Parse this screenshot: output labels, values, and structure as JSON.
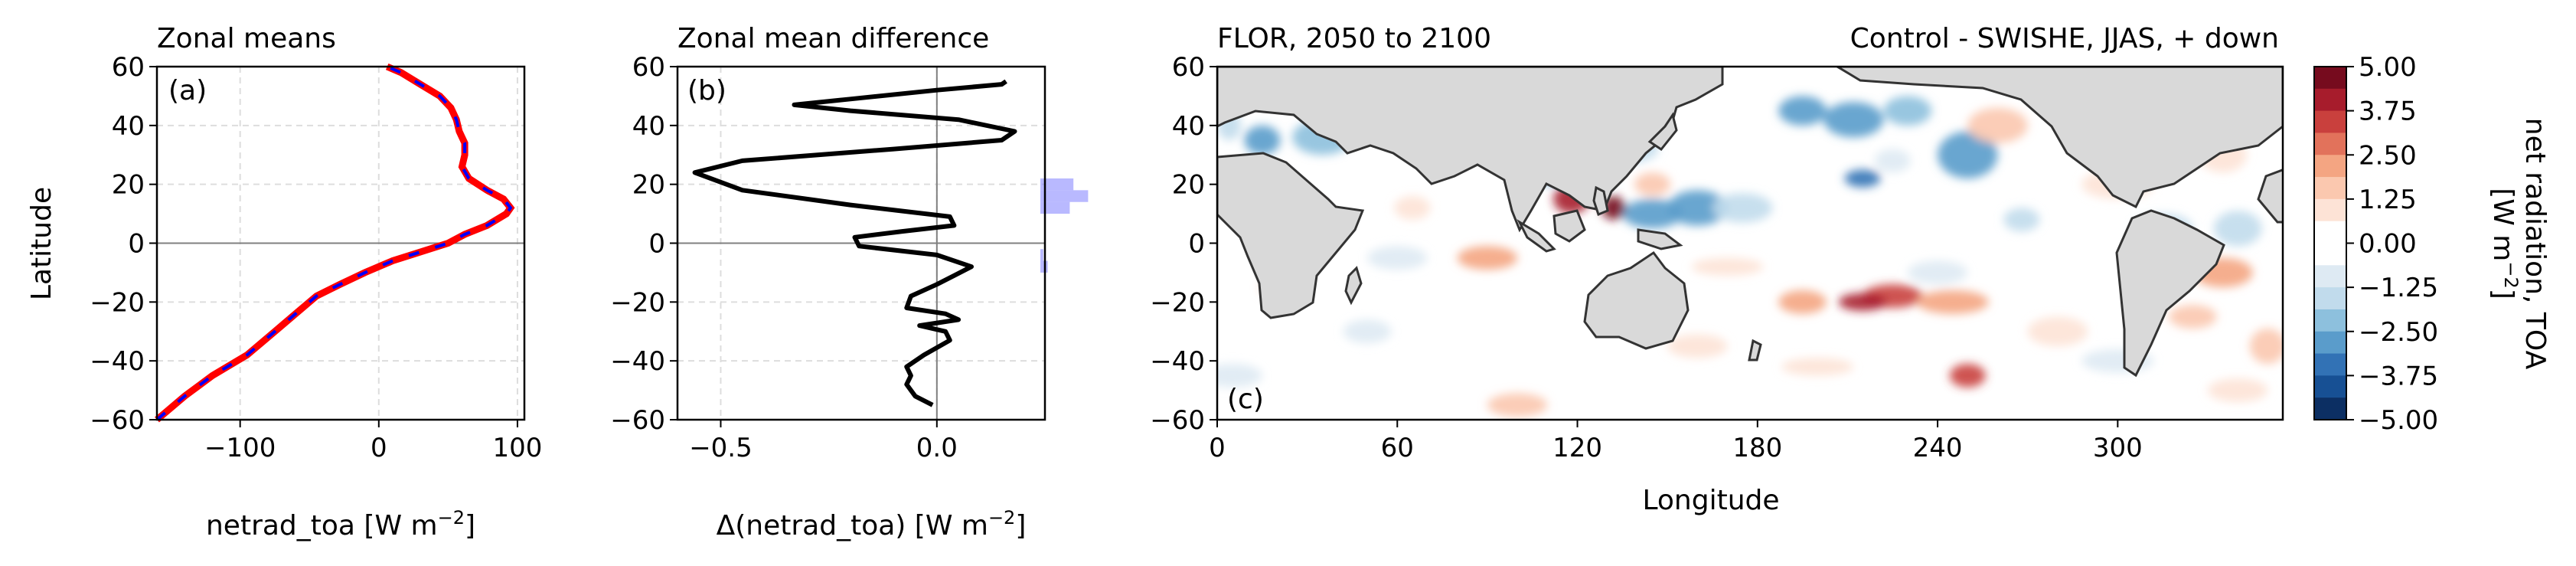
{
  "chart_data": [
    {
      "panel": "a",
      "type": "line",
      "title": "Zonal means",
      "panel_label": "(a)",
      "xlabel": "netrad_toa [W m",
      "xlabel_sup": "−2",
      "xlabel_end": "]",
      "ylabel": "Latitude",
      "xlim": [
        -160,
        105
      ],
      "ylim": [
        -60,
        60
      ],
      "xticks": [
        -100,
        0,
        100
      ],
      "xtick_labels": [
        "−100",
        "0",
        "100"
      ],
      "yticks": [
        -60,
        -40,
        -20,
        0,
        20,
        40,
        60
      ],
      "ytick_labels": [
        "−60",
        "−40",
        "−20",
        "0",
        "20",
        "40",
        "60"
      ],
      "grid": true,
      "series": [
        {
          "color": "#ff0000",
          "dash": false,
          "points": [
            [
              -160,
              -60
            ],
            [
              -140,
              -52
            ],
            [
              -120,
              -45
            ],
            [
              -95,
              -38
            ],
            [
              -75,
              -30
            ],
            [
              -60,
              -24
            ],
            [
              -45,
              -18
            ],
            [
              -28,
              -14
            ],
            [
              -10,
              -10
            ],
            [
              10,
              -6
            ],
            [
              30,
              -3
            ],
            [
              50,
              0
            ],
            [
              62,
              3
            ],
            [
              78,
              6
            ],
            [
              92,
              10
            ],
            [
              95,
              12
            ],
            [
              90,
              15
            ],
            [
              78,
              18
            ],
            [
              65,
              22
            ],
            [
              60,
              26
            ],
            [
              62,
              30
            ],
            [
              62,
              34
            ],
            [
              58,
              38
            ],
            [
              56,
              42
            ],
            [
              52,
              46
            ],
            [
              44,
              50
            ],
            [
              30,
              54
            ],
            [
              16,
              58
            ],
            [
              6,
              60
            ]
          ]
        },
        {
          "color": "#0000ff",
          "dash": true,
          "points": [
            [
              -160,
              -60
            ],
            [
              -140,
              -52
            ],
            [
              -120,
              -45
            ],
            [
              -95,
              -38
            ],
            [
              -75,
              -30
            ],
            [
              -60,
              -24
            ],
            [
              -45,
              -18
            ],
            [
              -28,
              -14
            ],
            [
              -10,
              -10
            ],
            [
              10,
              -6
            ],
            [
              30,
              -3
            ],
            [
              50,
              0
            ],
            [
              62,
              3
            ],
            [
              78,
              6
            ],
            [
              92,
              10
            ],
            [
              95,
              12
            ],
            [
              90,
              15
            ],
            [
              78,
              18
            ],
            [
              65,
              22
            ],
            [
              60,
              26
            ],
            [
              62,
              30
            ],
            [
              62,
              34
            ],
            [
              58,
              38
            ],
            [
              56,
              42
            ],
            [
              52,
              46
            ],
            [
              44,
              50
            ],
            [
              30,
              54
            ],
            [
              16,
              58
            ],
            [
              6,
              60
            ]
          ]
        }
      ]
    },
    {
      "panel": "b",
      "type": "line",
      "title": "Zonal mean difference",
      "panel_label": "(b)",
      "xlabel": "Δ(netrad_toa) [W m",
      "xlabel_sup": "−2",
      "xlabel_end": "]",
      "xlim": [
        -0.6,
        0.25
      ],
      "ylim": [
        -60,
        60
      ],
      "xticks": [
        -0.5,
        0.0
      ],
      "xtick_labels": [
        "−0.5",
        "0.0"
      ],
      "yticks": [
        -60,
        -40,
        -20,
        0,
        20,
        40,
        60
      ],
      "ytick_labels": [
        "−60",
        "−40",
        "−20",
        "0",
        "20",
        "40",
        "60"
      ],
      "grid": true,
      "series": [
        {
          "color": "#000000",
          "points": [
            [
              -0.01,
              -55
            ],
            [
              -0.05,
              -52
            ],
            [
              -0.07,
              -48
            ],
            [
              -0.06,
              -45
            ],
            [
              -0.07,
              -42
            ],
            [
              -0.03,
              -38
            ],
            [
              0.03,
              -33
            ],
            [
              0.02,
              -30
            ],
            [
              -0.04,
              -28
            ],
            [
              0.05,
              -26
            ],
            [
              0.02,
              -24
            ],
            [
              -0.07,
              -22
            ],
            [
              -0.06,
              -18
            ],
            [
              0.0,
              -14
            ],
            [
              0.04,
              -11
            ],
            [
              0.08,
              -8
            ],
            [
              0.0,
              -4
            ],
            [
              -0.18,
              -1
            ],
            [
              -0.19,
              2
            ],
            [
              -0.08,
              4
            ],
            [
              0.04,
              6
            ],
            [
              0.03,
              9
            ],
            [
              -0.2,
              13
            ],
            [
              -0.45,
              18
            ],
            [
              -0.56,
              24
            ],
            [
              -0.45,
              28
            ],
            [
              -0.1,
              32
            ],
            [
              0.15,
              35
            ],
            [
              0.18,
              38
            ],
            [
              0.05,
              42
            ],
            [
              -0.2,
              45
            ],
            [
              -0.33,
              47
            ],
            [
              -0.2,
              49
            ],
            [
              0.0,
              52
            ],
            [
              0.15,
              54
            ],
            [
              0.16,
              55
            ]
          ]
        }
      ],
      "histogram": {
        "color": "#8080ff",
        "values": [
          [
            -10,
            -6,
            0.02
          ],
          [
            -6,
            -2,
            0.008
          ],
          [
            10,
            14,
            0.08
          ],
          [
            14,
            18,
            0.13
          ],
          [
            18,
            22,
            0.09
          ]
        ]
      }
    },
    {
      "panel": "c",
      "type": "heatmap",
      "title_left": "FLOR, 2050 to 2100",
      "title_right": "Control - SWISHE, JJAS, + down",
      "panel_label": "(c)",
      "xlabel": "Longitude",
      "xlim": [
        0,
        355
      ],
      "ylim": [
        -60,
        60
      ],
      "xticks": [
        0,
        60,
        120,
        180,
        240,
        300
      ],
      "xtick_labels": [
        "0",
        "60",
        "120",
        "180",
        "240",
        "300"
      ],
      "yticks": [
        -60,
        -40,
        -20,
        0,
        20,
        40,
        60
      ],
      "ytick_labels": [
        "−60",
        "−40",
        "−20",
        "0",
        "20",
        "40",
        "60"
      ],
      "blobs": [
        [
          4,
          40,
          4,
          5,
          -1.5
        ],
        [
          15,
          35,
          6,
          5,
          -2.5
        ],
        [
          35,
          36,
          10,
          6,
          -2
        ],
        [
          75,
          42,
          8,
          6,
          -1.5
        ],
        [
          95,
          30,
          6,
          4,
          -1
        ],
        [
          112,
          26,
          10,
          6,
          -3
        ],
        [
          125,
          24,
          8,
          6,
          -2.5
        ],
        [
          135,
          32,
          12,
          5,
          -1.8
        ],
        [
          145,
          10,
          10,
          5,
          -2.5
        ],
        [
          160,
          12,
          10,
          6,
          -2.5
        ],
        [
          175,
          12,
          10,
          5,
          -1.5
        ],
        [
          195,
          45,
          8,
          5,
          -3
        ],
        [
          212,
          42,
          10,
          6,
          -2.5
        ],
        [
          230,
          45,
          8,
          5,
          -2
        ],
        [
          215,
          22,
          6,
          3,
          -3.5
        ],
        [
          225,
          28,
          6,
          4,
          -1
        ],
        [
          250,
          30,
          10,
          8,
          -2.5
        ],
        [
          268,
          8,
          6,
          4,
          -1.5
        ],
        [
          60,
          -5,
          10,
          4,
          -1
        ],
        [
          50,
          -30,
          8,
          4,
          -1
        ],
        [
          5,
          -45,
          10,
          4,
          -1.2
        ],
        [
          240,
          -10,
          10,
          4,
          -1.2
        ],
        [
          300,
          -40,
          12,
          4,
          -1
        ],
        [
          315,
          5,
          10,
          5,
          -1.5
        ],
        [
          340,
          5,
          8,
          6,
          -1.5
        ],
        [
          30,
          10,
          6,
          4,
          1.2
        ],
        [
          65,
          12,
          6,
          4,
          1
        ],
        [
          118,
          15,
          6,
          5,
          4
        ],
        [
          132,
          12,
          4,
          4,
          4.5
        ],
        [
          145,
          20,
          6,
          4,
          1.5
        ],
        [
          225,
          -18,
          10,
          4,
          3.5
        ],
        [
          215,
          -20,
          8,
          3,
          4
        ],
        [
          245,
          -20,
          12,
          4,
          2
        ],
        [
          195,
          -20,
          8,
          4,
          2
        ],
        [
          250,
          -45,
          6,
          4,
          3.5
        ],
        [
          90,
          -5,
          10,
          4,
          2
        ],
        [
          100,
          -55,
          10,
          4,
          1.5
        ],
        [
          160,
          -35,
          10,
          4,
          1
        ],
        [
          200,
          -42,
          12,
          3,
          1.2
        ],
        [
          280,
          -30,
          10,
          5,
          1.2
        ],
        [
          335,
          -10,
          10,
          5,
          2.5
        ],
        [
          325,
          -25,
          8,
          4,
          1.5
        ],
        [
          335,
          30,
          8,
          6,
          1
        ],
        [
          260,
          40,
          10,
          6,
          1.5
        ],
        [
          300,
          20,
          12,
          5,
          1
        ],
        [
          20,
          -15,
          6,
          4,
          1
        ],
        [
          350,
          -35,
          6,
          6,
          1.5
        ],
        [
          170,
          -8,
          12,
          3,
          1
        ],
        [
          340,
          -50,
          10,
          4,
          1
        ]
      ]
    },
    {
      "type": "colorbar",
      "label": "net radiation, TOA",
      "label2": "[W m",
      "label2_sup": "−2",
      "label2_end": "]",
      "levels": [
        5.0,
        3.75,
        2.5,
        1.25,
        0.0,
        -1.25,
        -2.5,
        -3.75,
        -5.0
      ],
      "level_labels": [
        "5.00",
        "3.75",
        "2.50",
        "1.25",
        "0.00",
        "−1.25",
        "−2.50",
        "−3.75",
        "−5.00"
      ],
      "colors": [
        "#760b1e",
        "#a71c2c",
        "#c9403d",
        "#e2725b",
        "#f4a582",
        "#fbc8af",
        "#fde3d6",
        "#ffffff",
        "#ffffff",
        "#deeaf3",
        "#c1dbec",
        "#8dc0dd",
        "#5a9ccb",
        "#3272b5",
        "#175094",
        "#0c2f63"
      ]
    }
  ]
}
